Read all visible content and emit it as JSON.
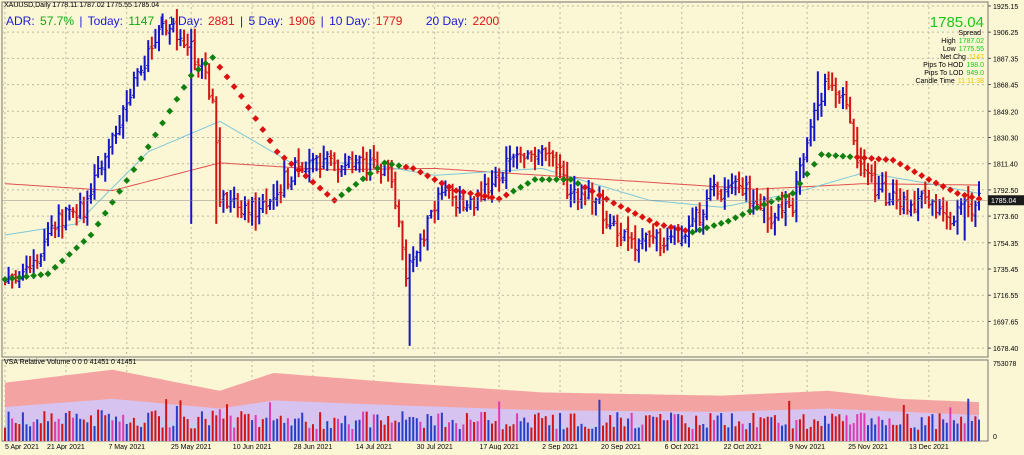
{
  "header": {
    "symbol_line": "XAUUSD,Daily  1778.11 1787.02 1775.55 1785.04"
  },
  "stats": {
    "adr_label": "ADR:",
    "adr_value": "57.7%",
    "today_label": "Today:",
    "today_value": "1147",
    "day1_label": "1 Day:",
    "day1_value": "2881",
    "day5_label": "5 Day:",
    "day5_value": "1906",
    "day10_label": "10 Day:",
    "day10_value": "1779",
    "day20_label": "20 Day:",
    "day20_value": "2200",
    "sep": "|"
  },
  "info_panel": {
    "price": "1785.04",
    "rows": [
      {
        "label": "Spread",
        "value": "",
        "color": "#17c817"
      },
      {
        "label": "High",
        "value": "1787.02",
        "color": "#17c817"
      },
      {
        "label": "Low",
        "value": "1775.55",
        "color": "#17c817"
      },
      {
        "label": "Net Chg",
        "value": "1147",
        "color": "#e6c800"
      },
      {
        "label": "Pips To HOD",
        "value": "198.0",
        "color": "#17c817"
      },
      {
        "label": "Pips To LOD",
        "value": "949.0",
        "color": "#17c817"
      },
      {
        "label": "Candle Time",
        "value": "11:11:38",
        "color": "#e6c800"
      }
    ]
  },
  "volume_panel": {
    "title": "VSA Relative Volume 0 0 0 41451 0 41451",
    "scale_top": "753078",
    "scale_bottom": "0"
  },
  "colors": {
    "background": "#fbf6d4",
    "grid": "#bdb8a0",
    "bull_bar": "#1414c8",
    "bear_bar": "#d41414",
    "trend_up": "#108010",
    "trend_down": "#dd1010",
    "ma_cyan": "#7fc8d8",
    "ma_red": "#e05050",
    "current_price_box": "#1a1a1a",
    "vol_band_outer": "#f4a3a3",
    "vol_band_inner": "#d7c3f0",
    "vol_band_core": "#c8ccf2"
  },
  "chart_data": {
    "type": "ohlc",
    "title": "XAUUSD,Daily",
    "y_ticks": [
      1678.4,
      1697.65,
      1716.55,
      1735.45,
      1754.35,
      1773.6,
      1792.5,
      1811.4,
      1830.3,
      1849.2,
      1868.45,
      1887.35,
      1906.25,
      1925.15
    ],
    "ylim": [
      1672,
      1928
    ],
    "current_price": 1785.04,
    "x_labels": [
      "5 Apr 2021",
      "21 Apr 2021",
      "7 May 2021",
      "25 May 2021",
      "10 Jun 2021",
      "28 Jun 2021",
      "14 Jul 2021",
      "30 Jul 2021",
      "17 Aug 2021",
      "2 Sep 2021",
      "20 Sep 2021",
      "6 Oct 2021",
      "22 Oct 2021",
      "9 Nov 2021",
      "25 Nov 2021",
      "13 Dec 2021"
    ],
    "close_anchors": [
      [
        0,
        1727
      ],
      [
        7,
        1735
      ],
      [
        15,
        1770
      ],
      [
        22,
        1780
      ],
      [
        30,
        1830
      ],
      [
        38,
        1880
      ],
      [
        45,
        1910
      ],
      [
        52,
        1895
      ],
      [
        58,
        1860
      ],
      [
        60,
        1790
      ],
      [
        66,
        1775
      ],
      [
        72,
        1780
      ],
      [
        80,
        1805
      ],
      [
        88,
        1812
      ],
      [
        96,
        1815
      ],
      [
        104,
        1810
      ],
      [
        108,
        1800
      ],
      [
        112,
        1735
      ],
      [
        116,
        1755
      ],
      [
        122,
        1790
      ],
      [
        130,
        1780
      ],
      [
        138,
        1805
      ],
      [
        146,
        1820
      ],
      [
        152,
        1820
      ],
      [
        158,
        1790
      ],
      [
        164,
        1790
      ],
      [
        170,
        1765
      ],
      [
        176,
        1755
      ],
      [
        182,
        1755
      ],
      [
        190,
        1760
      ],
      [
        198,
        1790
      ],
      [
        206,
        1793
      ],
      [
        214,
        1775
      ],
      [
        220,
        1782
      ],
      [
        226,
        1855
      ],
      [
        230,
        1870
      ],
      [
        234,
        1860
      ],
      [
        238,
        1810
      ],
      [
        244,
        1792
      ],
      [
        250,
        1782
      ],
      [
        256,
        1785
      ],
      [
        262,
        1772
      ],
      [
        268,
        1778
      ],
      [
        272,
        1785
      ]
    ],
    "events": [
      {
        "index": 52,
        "low": 1768
      },
      {
        "index": 59,
        "low": 1768
      },
      {
        "index": 113,
        "low": 1680
      },
      {
        "index": 227,
        "high": 1878
      },
      {
        "index": 268,
        "low": 1756
      }
    ],
    "trend_anchors": [
      [
        0,
        1728
      ],
      [
        12,
        1732
      ],
      [
        24,
        1760
      ],
      [
        38,
        1815
      ],
      [
        52,
        1875
      ],
      [
        58,
        1888
      ],
      [
        66,
        1860
      ],
      [
        76,
        1820
      ],
      [
        92,
        1785
      ],
      [
        106,
        1812
      ],
      [
        114,
        1808
      ],
      [
        126,
        1792
      ],
      [
        138,
        1786
      ],
      [
        148,
        1800
      ],
      [
        158,
        1800
      ],
      [
        170,
        1783
      ],
      [
        182,
        1768
      ],
      [
        192,
        1762
      ],
      [
        202,
        1770
      ],
      [
        212,
        1782
      ],
      [
        220,
        1790
      ],
      [
        228,
        1818
      ],
      [
        238,
        1816
      ],
      [
        248,
        1814
      ],
      [
        258,
        1800
      ],
      [
        266,
        1790
      ],
      [
        272,
        1786
      ]
    ],
    "trend_colors": [
      {
        "from": 0,
        "to": 58,
        "color": "up"
      },
      {
        "from": 58,
        "to": 92,
        "color": "down"
      },
      {
        "from": 92,
        "to": 110,
        "color": "up"
      },
      {
        "from": 110,
        "to": 140,
        "color": "down"
      },
      {
        "from": 140,
        "to": 160,
        "color": "up"
      },
      {
        "from": 160,
        "to": 190,
        "color": "down"
      },
      {
        "from": 190,
        "to": 236,
        "color": "up"
      },
      {
        "from": 236,
        "to": 272,
        "color": "down"
      }
    ],
    "ma_slow_anchors": [
      [
        0,
        1797
      ],
      [
        30,
        1792
      ],
      [
        60,
        1812
      ],
      [
        90,
        1807
      ],
      [
        120,
        1808
      ],
      [
        150,
        1803
      ],
      [
        180,
        1798
      ],
      [
        210,
        1793
      ],
      [
        240,
        1797
      ],
      [
        272,
        1796
      ]
    ],
    "ma_fast_anchors": [
      [
        0,
        1760
      ],
      [
        20,
        1768
      ],
      [
        40,
        1820
      ],
      [
        60,
        1842
      ],
      [
        80,
        1812
      ],
      [
        100,
        1812
      ],
      [
        120,
        1803
      ],
      [
        150,
        1808
      ],
      [
        180,
        1785
      ],
      [
        200,
        1780
      ],
      [
        220,
        1790
      ],
      [
        240,
        1805
      ],
      [
        256,
        1798
      ],
      [
        272,
        1790
      ]
    ],
    "volume": {
      "ylim": [
        0,
        753078
      ],
      "band_outer": [
        [
          0,
          0.72
        ],
        [
          30,
          0.88
        ],
        [
          60,
          0.62
        ],
        [
          75,
          0.84
        ],
        [
          110,
          0.72
        ],
        [
          150,
          0.6
        ],
        [
          200,
          0.56
        ],
        [
          230,
          0.62
        ],
        [
          250,
          0.52
        ],
        [
          272,
          0.48
        ]
      ],
      "band_inner": [
        [
          0,
          0.42
        ],
        [
          30,
          0.52
        ],
        [
          60,
          0.4
        ],
        [
          75,
          0.5
        ],
        [
          110,
          0.44
        ],
        [
          150,
          0.38
        ],
        [
          200,
          0.36
        ],
        [
          230,
          0.4
        ],
        [
          272,
          0.32
        ]
      ],
      "band_core": [
        [
          0,
          0.22
        ],
        [
          30,
          0.28
        ],
        [
          60,
          0.22
        ],
        [
          110,
          0.22
        ],
        [
          150,
          0.2
        ],
        [
          200,
          0.19
        ],
        [
          272,
          0.17
        ]
      ]
    }
  }
}
